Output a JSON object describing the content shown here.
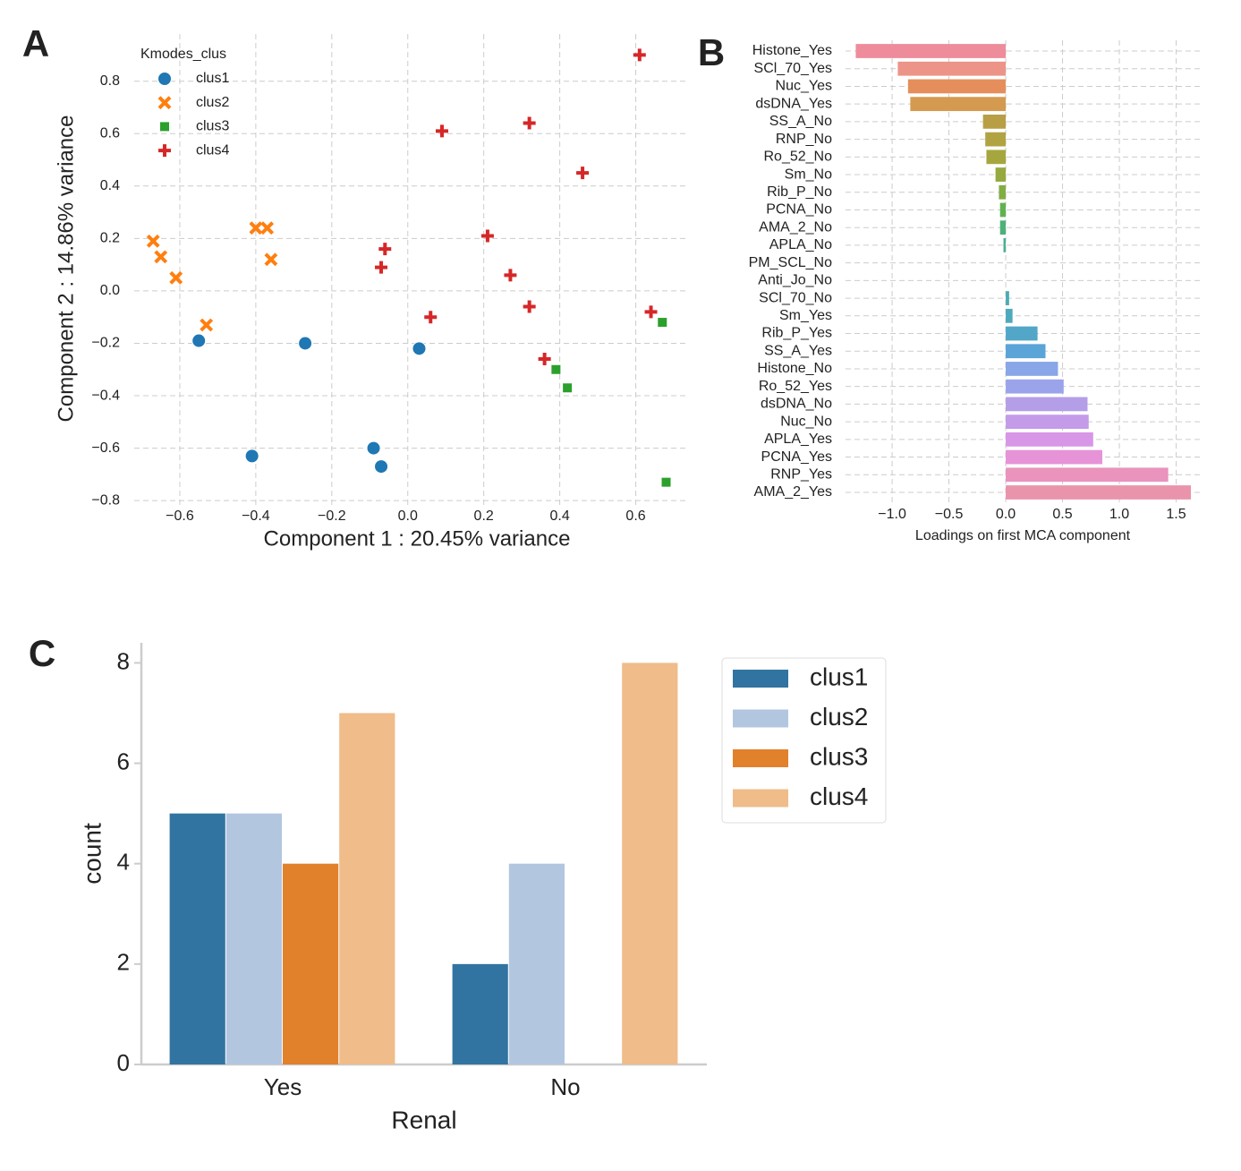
{
  "chart_data": [
    {
      "panel": "A",
      "type": "scatter",
      "xlabel": "Component 1 : 20.45% variance",
      "ylabel": "Component 2 : 14.86% variance",
      "legend_title": "Kmodes_clus",
      "legend": "upper left",
      "grid": true,
      "xlim": [
        -0.72,
        0.74
      ],
      "ylim": [
        -0.82,
        0.98
      ],
      "xticks": [
        {
          "value": -0.6,
          "label": "−0.6"
        },
        {
          "value": -0.4,
          "label": "−0.4"
        },
        {
          "value": -0.2,
          "label": "−0.2"
        },
        {
          "value": 0,
          "label": "0.0"
        },
        0.2,
        0.4,
        0.6
      ],
      "yticks": [
        {
          "value": -0.8,
          "label": "−0.8"
        },
        {
          "value": -0.6,
          "label": "−0.6"
        },
        {
          "value": -0.4,
          "label": "−0.4"
        },
        {
          "value": -0.2,
          "label": "−0.2"
        },
        {
          "value": 0,
          "label": "0.0"
        },
        0.2,
        0.4,
        0.6,
        0.8
      ],
      "series": [
        {
          "name": "clus1",
          "color": "#1f77b4",
          "marker": "circle",
          "x": [
            -0.55,
            -0.27,
            0.03,
            -0.41,
            -0.09,
            -0.07
          ],
          "y": [
            -0.19,
            -0.2,
            -0.22,
            -0.63,
            -0.6,
            -0.67
          ]
        },
        {
          "name": "clus2",
          "color": "#ff7f0e",
          "marker": "x",
          "x": [
            -0.67,
            -0.65,
            -0.61,
            -0.53,
            -0.4,
            -0.37,
            -0.36
          ],
          "y": [
            0.19,
            0.13,
            0.05,
            -0.13,
            0.24,
            0.24,
            0.12
          ]
        },
        {
          "name": "clus3",
          "color": "#2ca02c",
          "marker": "square",
          "x": [
            0.67,
            0.39,
            0.42,
            0.68
          ],
          "y": [
            -0.12,
            -0.3,
            -0.37,
            -0.73
          ]
        },
        {
          "name": "clus4",
          "color": "#d62728",
          "marker": "plus",
          "x": [
            0.61,
            0.32,
            0.09,
            0.46,
            -0.06,
            -0.07,
            0.21,
            0.27,
            0.06,
            0.32,
            0.64,
            0.36
          ],
          "y": [
            0.9,
            0.64,
            0.61,
            0.45,
            0.16,
            0.09,
            0.21,
            0.06,
            -0.1,
            -0.06,
            -0.08,
            -0.26
          ]
        }
      ]
    },
    {
      "panel": "B",
      "type": "barh",
      "xlabel": "Loadings on first MCA component",
      "grid": true,
      "xlim": [
        -1.41,
        1.74
      ],
      "xticks": [
        {
          "value": -1,
          "label": "−1.0"
        },
        {
          "value": -0.5,
          "label": "−0.5"
        },
        {
          "value": 0,
          "label": "0.0"
        },
        0.5,
        {
          "value": 1,
          "label": "1.0"
        },
        1.5
      ],
      "categories": [
        "Histone_Yes",
        "SCl_70_Yes",
        "Nuc_Yes",
        "dsDNA_Yes",
        "SS_A_No",
        "RNP_No",
        "Ro_52_No",
        "Sm_No",
        "Rib_P_No",
        "PCNA_No",
        "AMA_2_No",
        "APLA_No",
        "PM_SCL_No",
        "Anti_Jo_No",
        "SCl_70_No",
        "Sm_Yes",
        "Rib_P_Yes",
        "SS_A_Yes",
        "Histone_No",
        "Ro_52_Yes",
        "dsDNA_No",
        "Nuc_No",
        "APLA_Yes",
        "PCNA_Yes",
        "RNP_Yes",
        "AMA_2_Yes"
      ],
      "values": [
        -1.32,
        -0.95,
        -0.86,
        -0.84,
        -0.2,
        -0.18,
        -0.17,
        -0.09,
        -0.06,
        -0.05,
        -0.05,
        -0.02,
        0,
        0,
        0.03,
        0.06,
        0.28,
        0.35,
        0.46,
        0.51,
        0.72,
        0.73,
        0.77,
        0.85,
        1.43,
        1.63
      ],
      "colors": [
        "#ee8c9c",
        "#ec9488",
        "#e58e5b",
        "#d49a4f",
        "#b89f45",
        "#b1a342",
        "#a6a63f",
        "#95a93f",
        "#81ad45",
        "#5fb24f",
        "#4db17a",
        "#48b095",
        "#49ae9e",
        "#4aacab",
        "#4cabb3",
        "#4ea9bc",
        "#52a7c8",
        "#5aa4d8",
        "#88a6e8",
        "#9ba4ea",
        "#b49ee8",
        "#c39be8",
        "#d896e6",
        "#e693d8",
        "#e993bd",
        "#ea94ac"
      ]
    },
    {
      "panel": "C",
      "type": "bar",
      "xlabel": "Renal",
      "ylabel": "count",
      "legend": "right",
      "ylim": [
        0,
        8.4
      ],
      "yticks": [
        0,
        2,
        4,
        6,
        8
      ],
      "categories": [
        "Yes",
        "No"
      ],
      "series": [
        {
          "name": "clus1",
          "color": "#3274a1",
          "values": [
            5,
            2
          ]
        },
        {
          "name": "clus2",
          "color": "#b3c6e0",
          "values": [
            5,
            4
          ]
        },
        {
          "name": "clus3",
          "color": "#e1812c",
          "values": [
            4,
            0
          ]
        },
        {
          "name": "clus4",
          "color": "#efbc8a",
          "values": [
            7,
            8
          ]
        }
      ]
    }
  ]
}
